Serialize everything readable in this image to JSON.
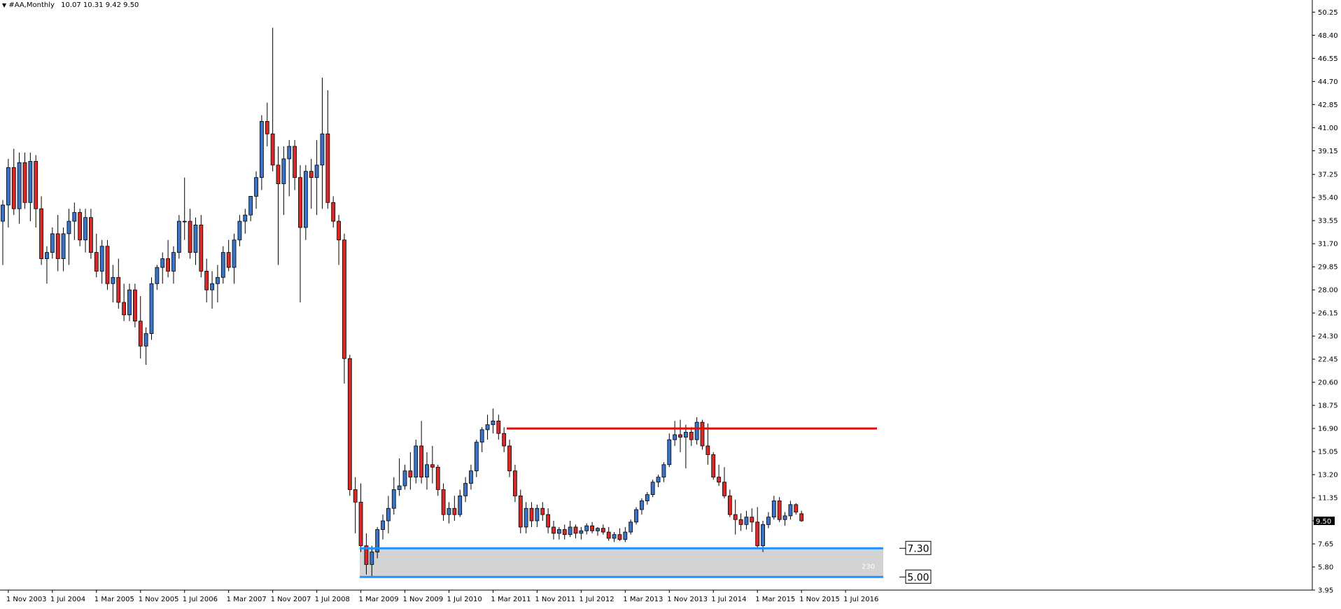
{
  "header": {
    "symbol": "#AA,Monthly",
    "ohlc": "10.07 10.31 9.42 9.50"
  },
  "colors": {
    "bull_body": "#3a73c8",
    "bear_body": "#d92a2a",
    "wick": "#000000",
    "resistance": "#ff0000",
    "support": "#1e90ff",
    "zone_fill": "#d3d3d3"
  },
  "annotations": {
    "resistance_price": 16.9,
    "zone": {
      "top": 7.3,
      "bottom": 5.0,
      "label": "230"
    },
    "zone_top_label": "7.30",
    "zone_bottom_label": "5.00"
  },
  "chart_data": {
    "type": "candlestick",
    "title": "#AA,Monthly",
    "ylim": [
      3.95,
      51.0
    ],
    "y_ticks": [
      "50.25",
      "48.40",
      "46.55",
      "44.70",
      "42.85",
      "41.00",
      "39.15",
      "37.25",
      "35.40",
      "33.55",
      "31.70",
      "29.85",
      "28.00",
      "26.15",
      "24.30",
      "22.45",
      "20.60",
      "18.75",
      "16.90",
      "15.05",
      "13.20",
      "11.35",
      "9.50",
      "7.65",
      "5.80",
      "3.95"
    ],
    "x_ticks": [
      "1 Nov 2003",
      "1 Jul 2004",
      "1 Mar 2005",
      "1 Nov 2005",
      "1 Jul 2006",
      "1 Mar 2007",
      "1 Nov 2007",
      "1 Jul 2008",
      "1 Mar 2009",
      "1 Nov 2009",
      "1 Jul 2010",
      "1 Mar 2011",
      "1 Nov 2011",
      "1 Jul 2012",
      "1 Mar 2013",
      "1 Nov 2013",
      "1 Jul 2014",
      "1 Mar 2015",
      "1 Nov 2015",
      "1 Jul 2016"
    ],
    "x_start": "2003-10",
    "current_price": "9.50",
    "candles": [
      [
        33.5,
        35.2,
        30.0,
        34.8
      ],
      [
        34.8,
        38.5,
        33.0,
        37.8
      ],
      [
        37.8,
        39.3,
        34.0,
        34.5
      ],
      [
        34.5,
        39.0,
        33.3,
        38.2
      ],
      [
        38.2,
        39.0,
        34.5,
        35.0
      ],
      [
        35.0,
        39.0,
        33.5,
        38.3
      ],
      [
        38.3,
        38.8,
        33.0,
        34.5
      ],
      [
        34.5,
        35.5,
        30.0,
        30.5
      ],
      [
        30.5,
        31.5,
        28.5,
        31.0
      ],
      [
        31.0,
        33.0,
        30.5,
        32.5
      ],
      [
        32.5,
        34.0,
        29.5,
        30.5
      ],
      [
        30.5,
        33.0,
        29.5,
        32.5
      ],
      [
        32.5,
        34.5,
        30.0,
        33.5
      ],
      [
        33.5,
        35.0,
        32.0,
        34.2
      ],
      [
        34.2,
        34.5,
        31.5,
        32.0
      ],
      [
        32.0,
        34.5,
        31.0,
        33.8
      ],
      [
        33.8,
        34.5,
        30.5,
        31.0
      ],
      [
        31.0,
        32.5,
        29.0,
        29.5
      ],
      [
        29.5,
        32.0,
        28.5,
        31.5
      ],
      [
        31.5,
        32.0,
        28.0,
        28.5
      ],
      [
        28.5,
        30.0,
        27.0,
        29.0
      ],
      [
        29.0,
        30.5,
        26.5,
        27.0
      ],
      [
        27.0,
        28.5,
        25.5,
        26.0
      ],
      [
        26.0,
        28.5,
        25.5,
        28.0
      ],
      [
        28.0,
        28.5,
        25.0,
        25.5
      ],
      [
        25.5,
        27.5,
        22.5,
        23.5
      ],
      [
        23.5,
        25.0,
        22.0,
        24.5
      ],
      [
        24.5,
        29.0,
        24.0,
        28.5
      ],
      [
        28.5,
        30.0,
        28.0,
        29.8
      ],
      [
        29.8,
        31.0,
        28.5,
        30.5
      ],
      [
        30.5,
        32.0,
        29.0,
        29.5
      ],
      [
        29.5,
        31.5,
        28.5,
        31.0
      ],
      [
        31.0,
        34.0,
        30.5,
        33.5
      ],
      [
        33.5,
        37.0,
        32.0,
        33.5
      ],
      [
        33.5,
        34.5,
        30.5,
        31.0
      ],
      [
        31.0,
        33.8,
        30.0,
        33.2
      ],
      [
        33.2,
        34.0,
        29.0,
        29.5
      ],
      [
        29.5,
        30.5,
        27.0,
        28.0
      ],
      [
        28.0,
        29.5,
        26.5,
        28.5
      ],
      [
        28.5,
        30.0,
        27.0,
        29.0
      ],
      [
        29.0,
        31.5,
        28.5,
        31.0
      ],
      [
        31.0,
        32.0,
        29.5,
        29.8
      ],
      [
        29.8,
        32.5,
        28.5,
        32.0
      ],
      [
        32.0,
        34.0,
        31.5,
        33.5
      ],
      [
        33.5,
        34.5,
        32.5,
        34.0
      ],
      [
        34.0,
        35.5,
        33.5,
        35.5
      ],
      [
        35.5,
        37.5,
        34.5,
        37.0
      ],
      [
        37.0,
        42.0,
        36.0,
        41.5
      ],
      [
        41.5,
        43.0,
        39.5,
        40.5
      ],
      [
        40.5,
        49.0,
        37.5,
        38.0
      ],
      [
        38.0,
        39.5,
        30.0,
        36.5
      ],
      [
        36.5,
        39.5,
        34.0,
        38.5
      ],
      [
        38.5,
        40.0,
        35.5,
        39.5
      ],
      [
        39.5,
        40.0,
        36.0,
        37.0
      ],
      [
        37.0,
        38.0,
        27.0,
        33.0
      ],
      [
        33.0,
        38.0,
        32.0,
        37.5
      ],
      [
        37.5,
        38.5,
        34.5,
        37.0
      ],
      [
        37.0,
        40.0,
        34.0,
        38.0
      ],
      [
        38.0,
        45.0,
        34.5,
        40.5
      ],
      [
        40.5,
        44.0,
        34.5,
        35.0
      ],
      [
        35.0,
        35.5,
        33.0,
        33.5
      ],
      [
        33.5,
        34.0,
        30.0,
        32.0
      ],
      [
        32.0,
        32.5,
        20.5,
        22.5
      ],
      [
        22.5,
        22.8,
        11.5,
        12.0
      ],
      [
        12.0,
        13.0,
        8.5,
        11.0
      ],
      [
        11.0,
        12.5,
        7.0,
        7.5
      ],
      [
        7.5,
        8.5,
        5.2,
        6.0
      ],
      [
        6.0,
        7.5,
        5.0,
        7.0
      ],
      [
        7.0,
        9.0,
        6.5,
        8.8
      ],
      [
        8.8,
        10.0,
        8.0,
        9.5
      ],
      [
        9.5,
        11.5,
        8.5,
        10.5
      ],
      [
        10.5,
        13.0,
        10.0,
        12.0
      ],
      [
        12.0,
        14.5,
        11.5,
        12.3
      ],
      [
        12.3,
        14.0,
        12.0,
        13.5
      ],
      [
        13.5,
        15.0,
        12.0,
        13.0
      ],
      [
        13.0,
        16.0,
        12.5,
        15.5
      ],
      [
        15.5,
        17.5,
        12.5,
        13.0
      ],
      [
        13.0,
        15.0,
        12.0,
        14.0
      ],
      [
        14.0,
        15.5,
        12.5,
        13.8
      ],
      [
        13.8,
        14.0,
        11.5,
        12.0
      ],
      [
        12.0,
        12.5,
        9.5,
        10.0
      ],
      [
        10.0,
        11.0,
        9.3,
        10.5
      ],
      [
        10.5,
        11.5,
        9.5,
        10.0
      ],
      [
        10.0,
        12.0,
        9.8,
        11.5
      ],
      [
        11.5,
        13.0,
        11.0,
        12.5
      ],
      [
        12.5,
        14.0,
        12.0,
        13.5
      ],
      [
        13.5,
        16.0,
        13.0,
        15.8
      ],
      [
        15.8,
        17.0,
        15.0,
        16.8
      ],
      [
        16.8,
        18.0,
        16.0,
        17.2
      ],
      [
        17.2,
        18.5,
        16.5,
        17.5
      ],
      [
        17.5,
        18.0,
        16.0,
        16.5
      ],
      [
        16.5,
        17.0,
        15.0,
        15.5
      ],
      [
        15.5,
        16.0,
        13.0,
        13.5
      ],
      [
        13.5,
        14.0,
        11.0,
        11.5
      ],
      [
        11.5,
        12.0,
        8.5,
        9.0
      ],
      [
        9.0,
        11.0,
        8.5,
        10.5
      ],
      [
        10.5,
        11.0,
        9.0,
        9.5
      ],
      [
        9.5,
        10.8,
        9.0,
        10.5
      ],
      [
        10.5,
        11.0,
        9.5,
        10.0
      ],
      [
        10.0,
        10.5,
        8.5,
        9.0
      ],
      [
        9.0,
        9.5,
        8.0,
        8.5
      ],
      [
        8.5,
        9.0,
        8.0,
        8.8
      ],
      [
        8.8,
        9.2,
        8.0,
        8.4
      ],
      [
        8.4,
        9.5,
        8.2,
        9.0
      ],
      [
        9.0,
        9.2,
        8.1,
        8.5
      ],
      [
        8.5,
        9.0,
        8.0,
        8.7
      ],
      [
        8.7,
        9.3,
        8.4,
        9.1
      ],
      [
        9.1,
        9.4,
        8.5,
        8.7
      ],
      [
        8.7,
        9.0,
        8.3,
        8.9
      ],
      [
        8.9,
        9.2,
        8.4,
        8.6
      ],
      [
        8.6,
        9.0,
        7.9,
        8.1
      ],
      [
        8.1,
        8.6,
        7.8,
        8.4
      ],
      [
        8.4,
        8.9,
        7.9,
        8.0
      ],
      [
        8.0,
        9.0,
        7.8,
        8.6
      ],
      [
        8.6,
        9.6,
        8.4,
        9.4
      ],
      [
        9.4,
        10.6,
        9.2,
        10.4
      ],
      [
        10.4,
        11.3,
        10.0,
        11.1
      ],
      [
        11.1,
        11.8,
        10.8,
        11.6
      ],
      [
        11.6,
        12.8,
        11.4,
        12.6
      ],
      [
        12.6,
        13.2,
        12.2,
        13.0
      ],
      [
        13.0,
        14.2,
        12.6,
        14.0
      ],
      [
        14.0,
        16.5,
        13.8,
        16.0
      ],
      [
        16.0,
        17.5,
        15.5,
        16.4
      ],
      [
        16.4,
        17.6,
        15.0,
        16.2
      ],
      [
        16.2,
        17.2,
        13.7,
        16.6
      ],
      [
        16.6,
        17.0,
        15.5,
        16.0
      ],
      [
        16.0,
        17.8,
        15.6,
        17.4
      ],
      [
        17.4,
        17.6,
        15.2,
        15.5
      ],
      [
        15.5,
        17.3,
        14.0,
        14.8
      ],
      [
        14.8,
        15.0,
        12.8,
        13.0
      ],
      [
        13.0,
        14.0,
        12.3,
        12.6
      ],
      [
        12.6,
        13.8,
        11.3,
        11.5
      ],
      [
        11.5,
        12.0,
        9.8,
        10.0
      ],
      [
        10.0,
        11.2,
        8.4,
        9.6
      ],
      [
        9.6,
        10.1,
        8.7,
        9.2
      ],
      [
        9.2,
        10.3,
        8.8,
        9.8
      ],
      [
        9.8,
        10.5,
        8.6,
        9.4
      ],
      [
        9.4,
        10.6,
        7.3,
        7.5
      ],
      [
        7.5,
        9.5,
        7.0,
        9.2
      ],
      [
        9.2,
        10.2,
        8.9,
        9.8
      ],
      [
        9.8,
        11.5,
        9.6,
        11.1
      ],
      [
        11.1,
        11.4,
        9.4,
        9.6
      ],
      [
        9.6,
        10.2,
        9.1,
        9.9
      ],
      [
        9.9,
        11.1,
        9.6,
        10.8
      ],
      [
        10.8,
        10.9,
        10.0,
        10.2
      ],
      [
        10.07,
        10.31,
        9.42,
        9.5
      ]
    ]
  }
}
